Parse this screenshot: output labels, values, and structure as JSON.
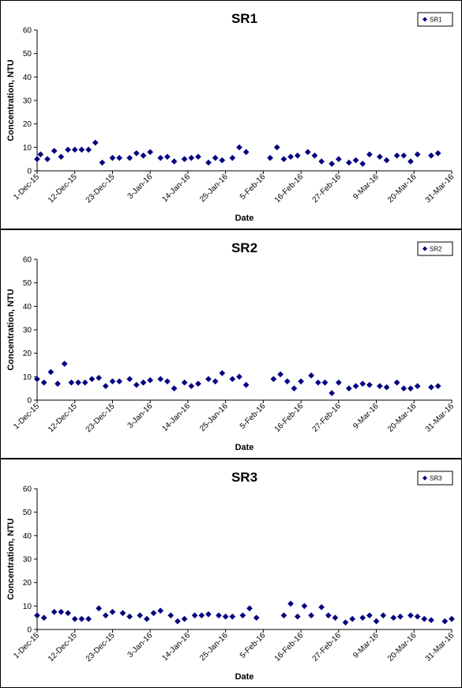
{
  "chart_data": [
    {
      "type": "scatter",
      "title": "SR1",
      "xlabel": "Date",
      "ylabel": "Concentration, NTU",
      "ylim": [
        0,
        60
      ],
      "yticks": [
        "0",
        "10",
        "20",
        "30",
        "40",
        "50",
        "60"
      ],
      "xticks": [
        "1-Dec-15",
        "12-Dec-15",
        "23-Dec-15",
        "3-Jan-16",
        "14-Jan-16",
        "25-Jan-16",
        "5-Feb-16",
        "16-Feb-16",
        "27-Feb-16",
        "9-Mar-16",
        "20-Mar-16",
        "31-Mar-16"
      ],
      "xlim": [
        "2015-12-01",
        "2016-03-31"
      ],
      "legend_position": "top-right",
      "marker": "diamond",
      "color": "#000080",
      "series": [
        {
          "name": "SR1",
          "points": [
            [
              "2015-12-01",
              5
            ],
            [
              "2015-12-02",
              7
            ],
            [
              "2015-12-04",
              5
            ],
            [
              "2015-12-06",
              8.5
            ],
            [
              "2015-12-08",
              6
            ],
            [
              "2015-12-10",
              9
            ],
            [
              "2015-12-12",
              9
            ],
            [
              "2015-12-14",
              9
            ],
            [
              "2015-12-16",
              9
            ],
            [
              "2015-12-18",
              12
            ],
            [
              "2015-12-20",
              3.5
            ],
            [
              "2015-12-23",
              5.5
            ],
            [
              "2015-12-25",
              5.5
            ],
            [
              "2015-12-28",
              5.5
            ],
            [
              "2015-12-30",
              7.5
            ],
            [
              "2016-01-01",
              6.5
            ],
            [
              "2016-01-03",
              8
            ],
            [
              "2016-01-06",
              5.5
            ],
            [
              "2016-01-08",
              6
            ],
            [
              "2016-01-10",
              4
            ],
            [
              "2016-01-13",
              5
            ],
            [
              "2016-01-15",
              5.5
            ],
            [
              "2016-01-17",
              6
            ],
            [
              "2016-01-20",
              3.5
            ],
            [
              "2016-01-22",
              5.5
            ],
            [
              "2016-01-24",
              4.5
            ],
            [
              "2016-01-27",
              5.5
            ],
            [
              "2016-01-29",
              10
            ],
            [
              "2016-01-31",
              8
            ],
            [
              "2016-02-07",
              5.5
            ],
            [
              "2016-02-09",
              10
            ],
            [
              "2016-02-11",
              5
            ],
            [
              "2016-02-13",
              6
            ],
            [
              "2016-02-15",
              6.5
            ],
            [
              "2016-02-18",
              8
            ],
            [
              "2016-02-20",
              6.5
            ],
            [
              "2016-02-22",
              4
            ],
            [
              "2016-02-25",
              3
            ],
            [
              "2016-02-27",
              5
            ],
            [
              "2016-03-01",
              3.5
            ],
            [
              "2016-03-03",
              4.5
            ],
            [
              "2016-03-05",
              3
            ],
            [
              "2016-03-07",
              7
            ],
            [
              "2016-03-10",
              6
            ],
            [
              "2016-03-12",
              4.5
            ],
            [
              "2016-03-15",
              6.5
            ],
            [
              "2016-03-17",
              6.5
            ],
            [
              "2016-03-19",
              4
            ],
            [
              "2016-03-21",
              7
            ],
            [
              "2016-03-25",
              6.5
            ],
            [
              "2016-03-27",
              7.5
            ]
          ]
        }
      ]
    },
    {
      "type": "scatter",
      "title": "SR2",
      "xlabel": "Date",
      "ylabel": "Concentration, NTU",
      "ylim": [
        0,
        60
      ],
      "yticks": [
        "0",
        "10",
        "20",
        "30",
        "40",
        "50",
        "60"
      ],
      "xticks": [
        "1-Dec-15",
        "12-Dec-15",
        "23-Dec-15",
        "3-Jan-16",
        "14-Jan-16",
        "25-Jan-16",
        "5-Feb-16",
        "16-Feb-16",
        "27-Feb-16",
        "9-Mar-16",
        "20-Mar-16",
        "31-Mar-16"
      ],
      "xlim": [
        "2015-12-01",
        "2016-03-31"
      ],
      "legend_position": "top-right",
      "marker": "diamond",
      "color": "#000080",
      "series": [
        {
          "name": "SR2",
          "points": [
            [
              "2015-12-01",
              9
            ],
            [
              "2015-12-03",
              7.5
            ],
            [
              "2015-12-05",
              12
            ],
            [
              "2015-12-07",
              7
            ],
            [
              "2015-12-09",
              15.5
            ],
            [
              "2015-12-11",
              7.5
            ],
            [
              "2015-12-13",
              7.5
            ],
            [
              "2015-12-15",
              7.5
            ],
            [
              "2015-12-17",
              9
            ],
            [
              "2015-12-19",
              9.5
            ],
            [
              "2015-12-21",
              6
            ],
            [
              "2015-12-23",
              8
            ],
            [
              "2015-12-25",
              8
            ],
            [
              "2015-12-28",
              9
            ],
            [
              "2015-12-30",
              6.5
            ],
            [
              "2016-01-01",
              7.5
            ],
            [
              "2016-01-03",
              8.5
            ],
            [
              "2016-01-06",
              9
            ],
            [
              "2016-01-08",
              8
            ],
            [
              "2016-01-10",
              5
            ],
            [
              "2016-01-13",
              7.5
            ],
            [
              "2016-01-15",
              6
            ],
            [
              "2016-01-17",
              7
            ],
            [
              "2016-01-20",
              9
            ],
            [
              "2016-01-22",
              8
            ],
            [
              "2016-01-24",
              11.5
            ],
            [
              "2016-01-27",
              9
            ],
            [
              "2016-01-29",
              10
            ],
            [
              "2016-01-31",
              6.5
            ],
            [
              "2016-02-08",
              9
            ],
            [
              "2016-02-10",
              11
            ],
            [
              "2016-02-12",
              8
            ],
            [
              "2016-02-14",
              5
            ],
            [
              "2016-02-16",
              8
            ],
            [
              "2016-02-19",
              10.5
            ],
            [
              "2016-02-21",
              7.5
            ],
            [
              "2016-02-23",
              7.5
            ],
            [
              "2016-02-25",
              3
            ],
            [
              "2016-02-27",
              7.5
            ],
            [
              "2016-03-01",
              5
            ],
            [
              "2016-03-03",
              6
            ],
            [
              "2016-03-05",
              7
            ],
            [
              "2016-03-07",
              6.5
            ],
            [
              "2016-03-10",
              6
            ],
            [
              "2016-03-12",
              5.5
            ],
            [
              "2016-03-15",
              7.5
            ],
            [
              "2016-03-17",
              5
            ],
            [
              "2016-03-19",
              5
            ],
            [
              "2016-03-21",
              6
            ],
            [
              "2016-03-25",
              5.5
            ],
            [
              "2016-03-27",
              6
            ]
          ]
        }
      ]
    },
    {
      "type": "scatter",
      "title": "SR3",
      "xlabel": "Date",
      "ylabel": "Concentration, NTU",
      "ylim": [
        0,
        60
      ],
      "yticks": [
        "0",
        "10",
        "20",
        "30",
        "40",
        "50",
        "60"
      ],
      "xticks": [
        "1-Dec-15",
        "12-Dec-15",
        "23-Dec-15",
        "3-Jan-16",
        "14-Jan-16",
        "25-Jan-16",
        "5-Feb-16",
        "16-Feb-16",
        "27-Feb-16",
        "9-Mar-16",
        "20-Mar-16",
        "31-Mar-16"
      ],
      "xlim": [
        "2015-12-01",
        "2016-03-31"
      ],
      "legend_position": "top-right",
      "marker": "diamond",
      "color": "#000080",
      "series": [
        {
          "name": "SR3",
          "points": [
            [
              "2015-12-01",
              6
            ],
            [
              "2015-12-03",
              5
            ],
            [
              "2015-12-06",
              7.5
            ],
            [
              "2015-12-08",
              7.5
            ],
            [
              "2015-12-10",
              7
            ],
            [
              "2015-12-12",
              4.5
            ],
            [
              "2015-12-14",
              4.5
            ],
            [
              "2015-12-16",
              4.5
            ],
            [
              "2015-12-19",
              9
            ],
            [
              "2015-12-21",
              6
            ],
            [
              "2015-12-23",
              7.5
            ],
            [
              "2015-12-26",
              7
            ],
            [
              "2015-12-28",
              5.5
            ],
            [
              "2015-12-31",
              6
            ],
            [
              "2016-01-02",
              4.5
            ],
            [
              "2016-01-04",
              7
            ],
            [
              "2016-01-06",
              8
            ],
            [
              "2016-01-09",
              6
            ],
            [
              "2016-01-11",
              3.5
            ],
            [
              "2016-01-13",
              4.5
            ],
            [
              "2016-01-16",
              6
            ],
            [
              "2016-01-18",
              6
            ],
            [
              "2016-01-20",
              6.5
            ],
            [
              "2016-01-23",
              6
            ],
            [
              "2016-01-25",
              5.5
            ],
            [
              "2016-01-27",
              5.5
            ],
            [
              "2016-01-30",
              6
            ],
            [
              "2016-02-01",
              9
            ],
            [
              "2016-02-03",
              5
            ],
            [
              "2016-02-11",
              6
            ],
            [
              "2016-02-13",
              11
            ],
            [
              "2016-02-15",
              5.5
            ],
            [
              "2016-02-17",
              10
            ],
            [
              "2016-02-19",
              6
            ],
            [
              "2016-02-22",
              9.5
            ],
            [
              "2016-02-24",
              6
            ],
            [
              "2016-02-26",
              5
            ],
            [
              "2016-02-29",
              3
            ],
            [
              "2016-03-02",
              4.5
            ],
            [
              "2016-03-05",
              5
            ],
            [
              "2016-03-07",
              6
            ],
            [
              "2016-03-09",
              3.5
            ],
            [
              "2016-03-11",
              6
            ],
            [
              "2016-03-14",
              5
            ],
            [
              "2016-03-16",
              5.5
            ],
            [
              "2016-03-19",
              6
            ],
            [
              "2016-03-21",
              5.5
            ],
            [
              "2016-03-23",
              4.5
            ],
            [
              "2016-03-25",
              4
            ],
            [
              "2016-03-29",
              3.5
            ],
            [
              "2016-03-31",
              4.5
            ]
          ]
        }
      ]
    }
  ]
}
